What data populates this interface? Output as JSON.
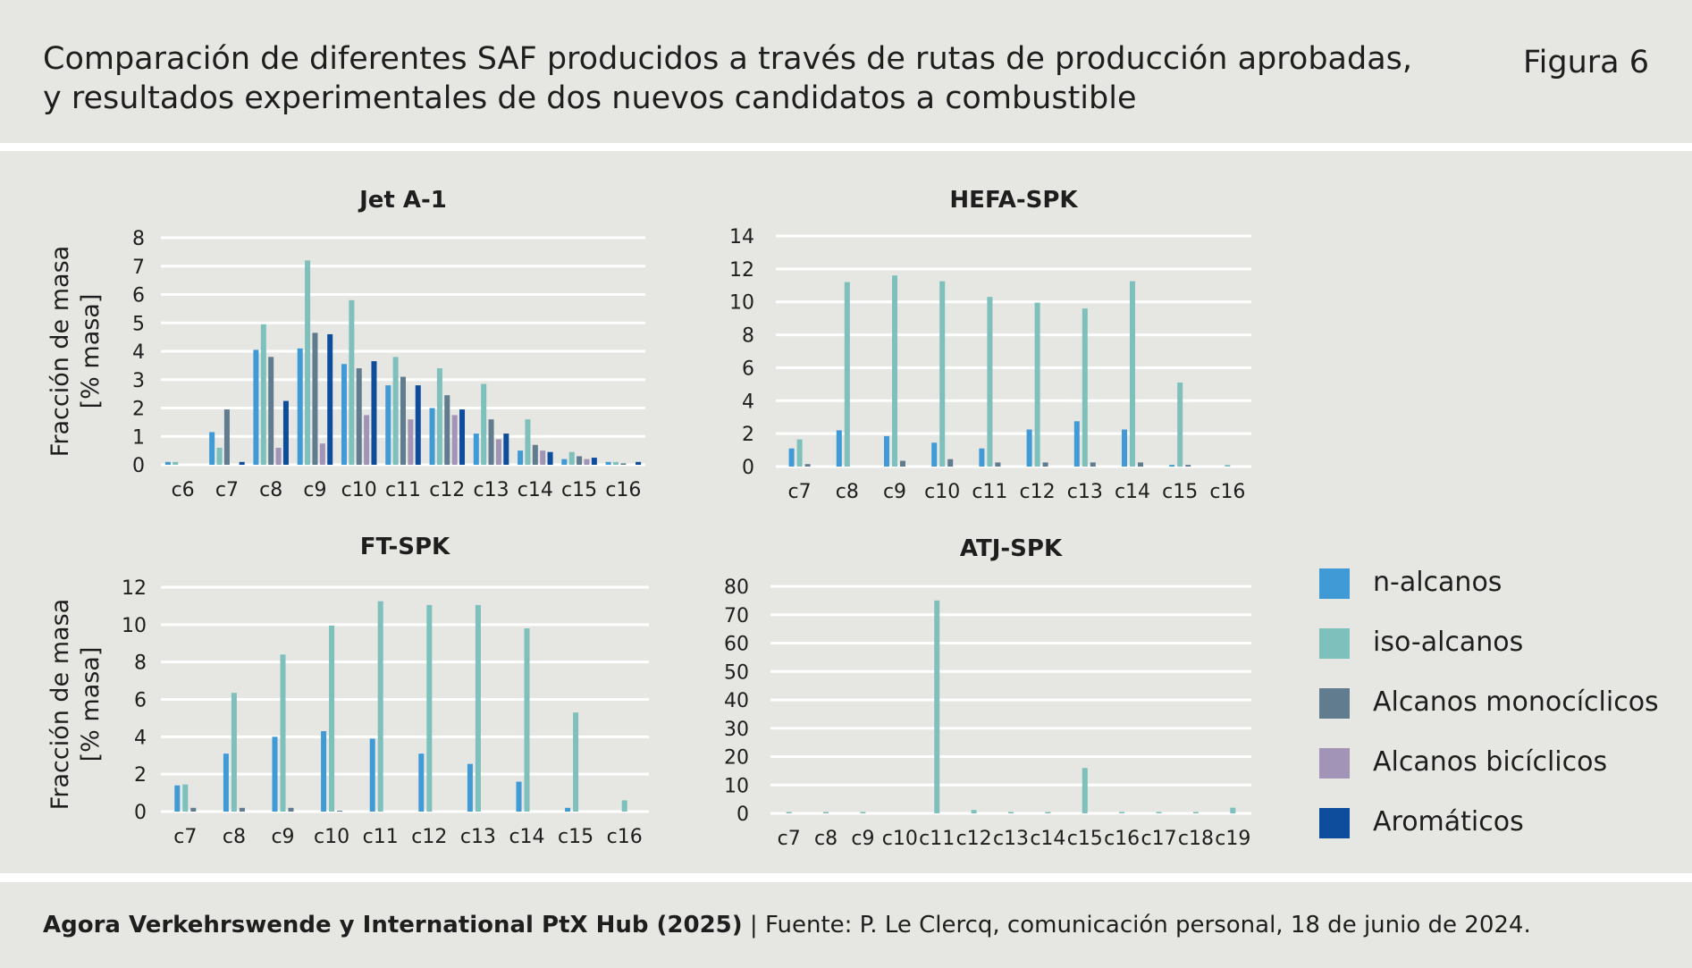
{
  "header": {
    "title_line1": "Comparación de diferentes SAF producidos a través de rutas de producción aprobadas,",
    "title_line2": "y resultados experimentales de dos nuevos candidatos a combustible",
    "figure_label": "Figura 6"
  },
  "footer": {
    "source_bold": "Agora Verkehrswende y International PtX Hub (2025)",
    "separator": " | ",
    "source_text": "Fuente: P. Le Clercq, comunicación personal, 18 de junio de 2024."
  },
  "ylabel_line1": "Fracción de masa",
  "ylabel_line2": "[% masa]",
  "legend": [
    {
      "label": "n-alcanos",
      "color": "#3f9ad6"
    },
    {
      "label": "iso-alcanos",
      "color": "#7dc0bc"
    },
    {
      "label": "Alcanos monocíclicos",
      "color": "#617b8f"
    },
    {
      "label": "Alcanos bicíclicos",
      "color": "#a294b6"
    },
    {
      "label": "Aromáticos",
      "color": "#0d4d9c"
    }
  ],
  "chart_data": [
    {
      "type": "bar",
      "title": "Jet A-1",
      "ylabel": "Fracción de masa [% masa]",
      "ylim": [
        0,
        8
      ],
      "yticks": [
        0,
        1,
        2,
        3,
        4,
        5,
        6,
        7,
        8
      ],
      "categories": [
        "c6",
        "c7",
        "c8",
        "c9",
        "c10",
        "c11",
        "c12",
        "c13",
        "c14",
        "c15",
        "c16"
      ],
      "series": [
        {
          "name": "n-alcanos",
          "values": [
            0.1,
            1.15,
            4.05,
            4.1,
            3.55,
            2.8,
            2.0,
            1.1,
            0.5,
            0.2,
            0.1
          ]
        },
        {
          "name": "iso-alcanos",
          "values": [
            0.1,
            0.6,
            4.95,
            7.2,
            5.8,
            3.8,
            3.4,
            2.85,
            1.6,
            0.45,
            0.1
          ]
        },
        {
          "name": "Alcanos monocíclicos",
          "values": [
            0,
            1.95,
            3.8,
            4.65,
            3.4,
            3.1,
            2.45,
            1.6,
            0.7,
            0.3,
            0.05
          ]
        },
        {
          "name": "Alcanos bicíclicos",
          "values": [
            0,
            0,
            0.6,
            0.75,
            1.75,
            1.6,
            1.75,
            0.9,
            0.5,
            0.2,
            0
          ]
        },
        {
          "name": "Aromáticos",
          "values": [
            0,
            0.1,
            2.25,
            4.6,
            3.65,
            2.8,
            1.95,
            1.1,
            0.45,
            0.25,
            0.1
          ]
        }
      ]
    },
    {
      "type": "bar",
      "title": "HEFA-SPK",
      "ylim": [
        0,
        14
      ],
      "yticks": [
        0,
        2,
        4,
        6,
        8,
        10,
        12,
        14
      ],
      "categories": [
        "c7",
        "c8",
        "c9",
        "c10",
        "c11",
        "c12",
        "c13",
        "c14",
        "c15",
        "c16"
      ],
      "series": [
        {
          "name": "n-alcanos",
          "values": [
            1.1,
            2.2,
            1.85,
            1.45,
            1.1,
            2.25,
            2.75,
            2.25,
            0.1,
            0
          ]
        },
        {
          "name": "iso-alcanos",
          "values": [
            1.65,
            11.2,
            11.6,
            11.25,
            10.3,
            9.95,
            9.6,
            11.25,
            5.1,
            0.1
          ]
        },
        {
          "name": "Alcanos monocíclicos",
          "values": [
            0.15,
            0,
            0.35,
            0.45,
            0.25,
            0.25,
            0.25,
            0.25,
            0.1,
            0
          ]
        }
      ]
    },
    {
      "type": "bar",
      "title": "FT-SPK",
      "ylabel": "Fracción de masa [% masa]",
      "ylim": [
        0,
        12
      ],
      "yticks": [
        0,
        2,
        4,
        6,
        8,
        10,
        12
      ],
      "categories": [
        "c7",
        "c8",
        "c9",
        "c10",
        "c11",
        "c12",
        "c13",
        "c14",
        "c15",
        "c16"
      ],
      "series": [
        {
          "name": "n-alcanos",
          "values": [
            1.4,
            3.1,
            4.0,
            4.3,
            3.9,
            3.1,
            2.55,
            1.6,
            0.2,
            0
          ]
        },
        {
          "name": "iso-alcanos",
          "values": [
            1.45,
            6.35,
            8.4,
            9.95,
            11.25,
            11.05,
            11.05,
            9.8,
            5.3,
            0.6
          ]
        },
        {
          "name": "Alcanos monocíclicos",
          "values": [
            0.2,
            0.2,
            0.2,
            0.05,
            0,
            0,
            0,
            0,
            0,
            0
          ]
        }
      ]
    },
    {
      "type": "bar",
      "title": "ATJ-SPK",
      "ylim": [
        0,
        80
      ],
      "yticks": [
        0,
        10,
        20,
        30,
        40,
        50,
        60,
        70,
        80
      ],
      "categories": [
        "c7",
        "c8",
        "c9",
        "c10",
        "c11",
        "c12",
        "c13",
        "c14",
        "c15",
        "c16",
        "c17",
        "c18",
        "c19"
      ],
      "series": [
        {
          "name": "iso-alcanos",
          "values": [
            0.5,
            0.5,
            0.5,
            0,
            75,
            1.2,
            0.5,
            0.5,
            16,
            0.5,
            0.5,
            0.5,
            2
          ]
        }
      ]
    }
  ]
}
